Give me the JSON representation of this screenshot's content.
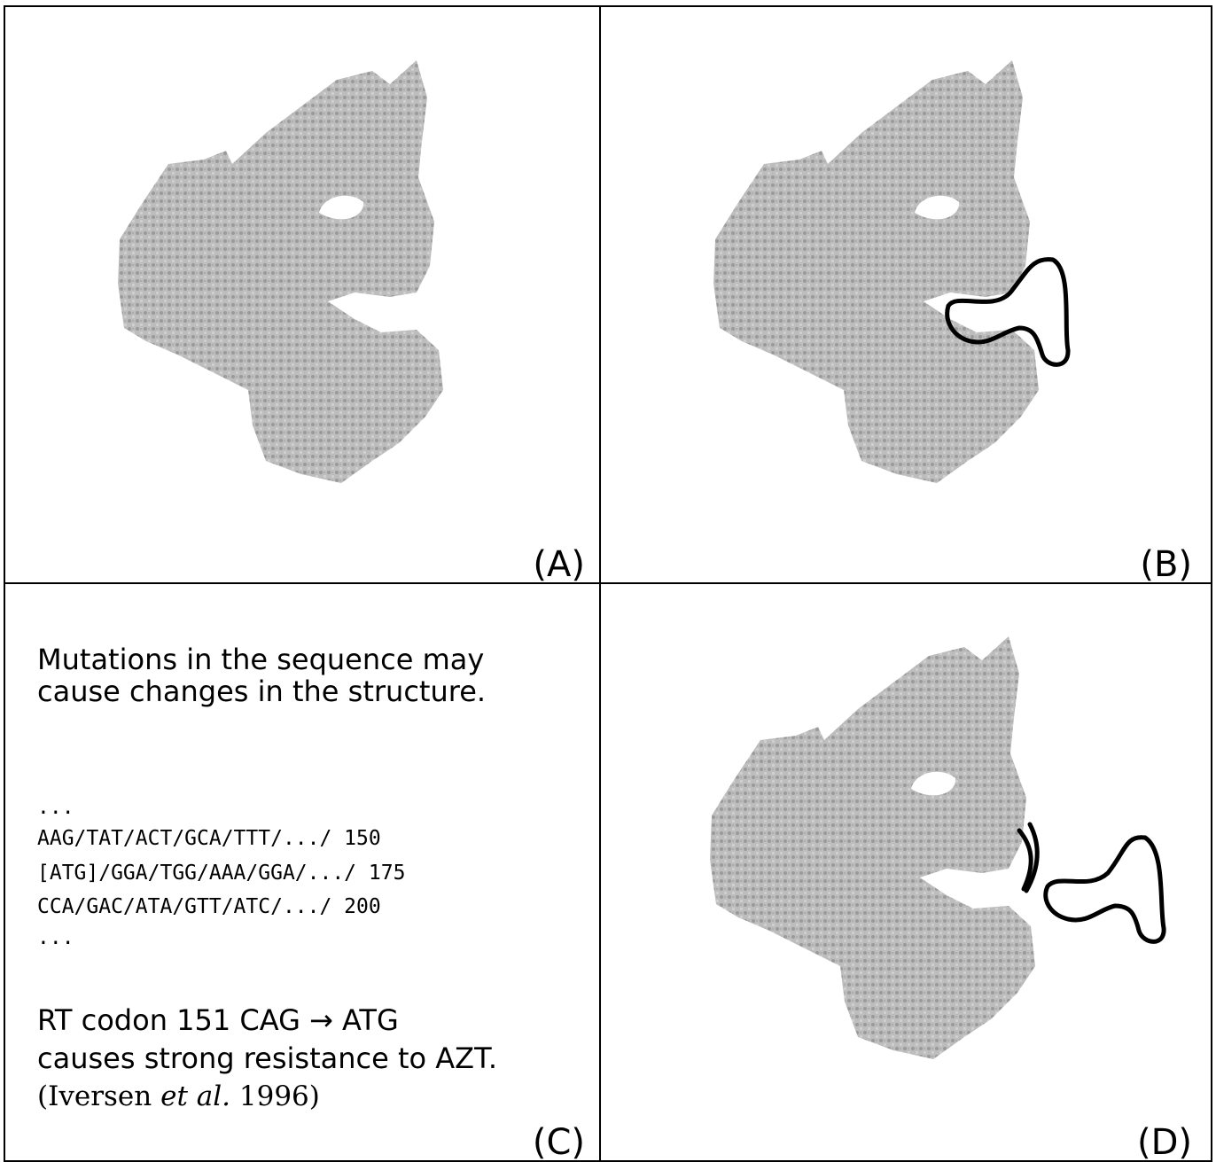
{
  "panels": [
    {
      "label": "(A)"
    },
    {
      "label": "(B)"
    },
    {
      "label": "(C)",
      "heading": [
        "Mutations in the sequence may",
        "cause changes in the structure."
      ],
      "sequence": [
        "...",
        "AAG/TAT/ACT/GCA/TTT/.../ 150",
        "[ATG]/GGA/TGG/AAA/GGA/.../ 175",
        "CCA/GAC/ATA/GTT/ATC/.../ 200",
        "..."
      ],
      "finding": [
        "RT codon 151 CAG → ATG",
        "causes strong resistance to AZT."
      ],
      "citation": {
        "author": "(Iversen",
        "etal": "et al.",
        "year": "1996)"
      }
    },
    {
      "label": "(D)"
    }
  ]
}
